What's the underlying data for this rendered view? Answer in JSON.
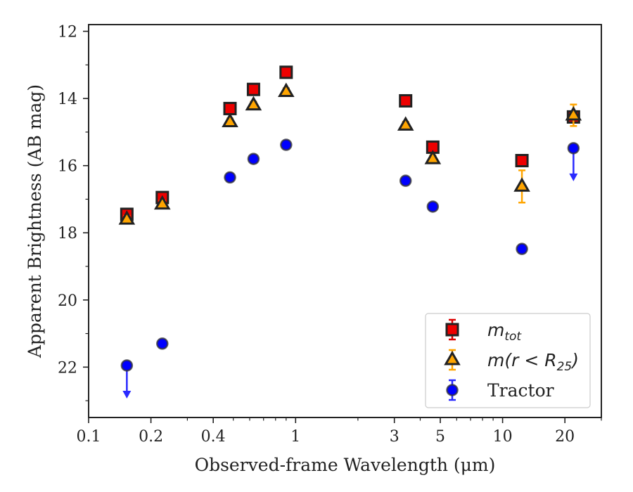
{
  "chart_data": {
    "type": "scatter",
    "xlabel": "Observed-frame Wavelength (μm)",
    "ylabel": "Apparent Brightness (AB mag)",
    "xscale": "log",
    "xlim": [
      0.1,
      30
    ],
    "ylim": [
      23.5,
      11.8
    ],
    "y_inverted": true,
    "x_ticks": [
      {
        "value": 0.1,
        "label": "0.1"
      },
      {
        "value": 0.2,
        "label": "0.2"
      },
      {
        "value": 0.4,
        "label": "0.4"
      },
      {
        "value": 1,
        "label": "1"
      },
      {
        "value": 3,
        "label": "3"
      },
      {
        "value": 5,
        "label": "5"
      },
      {
        "value": 10,
        "label": "10"
      },
      {
        "value": 20,
        "label": "20"
      }
    ],
    "x_minor_ticks": [
      0.3,
      0.5,
      0.6,
      0.7,
      0.8,
      0.9,
      2,
      4,
      6,
      7,
      8,
      9,
      30
    ],
    "y_ticks": [
      {
        "value": 12,
        "label": "12"
      },
      {
        "value": 14,
        "label": "14"
      },
      {
        "value": 16,
        "label": "16"
      },
      {
        "value": 18,
        "label": "18"
      },
      {
        "value": 20,
        "label": "20"
      },
      {
        "value": 22,
        "label": "22"
      }
    ],
    "y_minor_ticks": [
      13,
      15,
      17,
      19,
      21,
      23
    ],
    "grid": false,
    "legend_position": "lower-right",
    "series": [
      {
        "name": "m_tot",
        "legend_label": {
          "base": "m",
          "sub": "tot"
        },
        "marker": "square",
        "color": "#ee0000",
        "edge_color": "#222222",
        "errorbar_color": "#dd0000",
        "points": [
          {
            "x": 0.153,
            "y": 17.45,
            "err": 0.05
          },
          {
            "x": 0.227,
            "y": 16.95,
            "err": 0.05
          },
          {
            "x": 0.482,
            "y": 14.3,
            "err": 0.05
          },
          {
            "x": 0.626,
            "y": 13.73,
            "err": 0.05
          },
          {
            "x": 0.9,
            "y": 13.22,
            "err": 0.05
          },
          {
            "x": 3.4,
            "y": 14.07,
            "err": 0.05
          },
          {
            "x": 4.6,
            "y": 15.45,
            "err": 0.05
          },
          {
            "x": 12.4,
            "y": 15.85,
            "err": 0.05
          },
          {
            "x": 22.0,
            "y": 14.55,
            "err": 0.05
          }
        ]
      },
      {
        "name": "m(r < R25)",
        "legend_label": {
          "base": "m(r < R",
          "sub": "25",
          "tail": ")"
        },
        "marker": "triangle",
        "color": "#ffa500",
        "edge_color": "#222222",
        "errorbar_color": "#ffa500",
        "points": [
          {
            "x": 0.153,
            "y": 17.6,
            "err": 0.05
          },
          {
            "x": 0.227,
            "y": 17.15,
            "err": 0.05
          },
          {
            "x": 0.482,
            "y": 14.7,
            "err": 0.05
          },
          {
            "x": 0.626,
            "y": 14.2,
            "err": 0.05
          },
          {
            "x": 0.9,
            "y": 13.8,
            "err": 0.05
          },
          {
            "x": 3.4,
            "y": 14.8,
            "err": 0.05
          },
          {
            "x": 4.6,
            "y": 15.8,
            "err": 0.05
          },
          {
            "x": 12.4,
            "y": 16.62,
            "err": 0.48
          },
          {
            "x": 22.0,
            "y": 14.5,
            "err": 0.32
          }
        ]
      },
      {
        "name": "Tractor",
        "legend_label": {
          "base": "Tractor"
        },
        "marker": "circle",
        "color": "#0000ff",
        "edge_color": "#333333",
        "errorbar_color": "#2a2aff",
        "points": [
          {
            "x": 0.153,
            "y": 21.95,
            "err": 0.05,
            "limit": true
          },
          {
            "x": 0.227,
            "y": 21.3,
            "err": 0.05
          },
          {
            "x": 0.482,
            "y": 16.35,
            "err": 0.05
          },
          {
            "x": 0.626,
            "y": 15.8,
            "err": 0.05
          },
          {
            "x": 0.9,
            "y": 15.38,
            "err": 0.05
          },
          {
            "x": 3.4,
            "y": 16.45,
            "err": 0.05
          },
          {
            "x": 4.6,
            "y": 17.22,
            "err": 0.05
          },
          {
            "x": 12.4,
            "y": 18.48,
            "err": 0.05
          },
          {
            "x": 22.0,
            "y": 15.48,
            "err": 0.05,
            "limit": true
          }
        ]
      }
    ]
  }
}
